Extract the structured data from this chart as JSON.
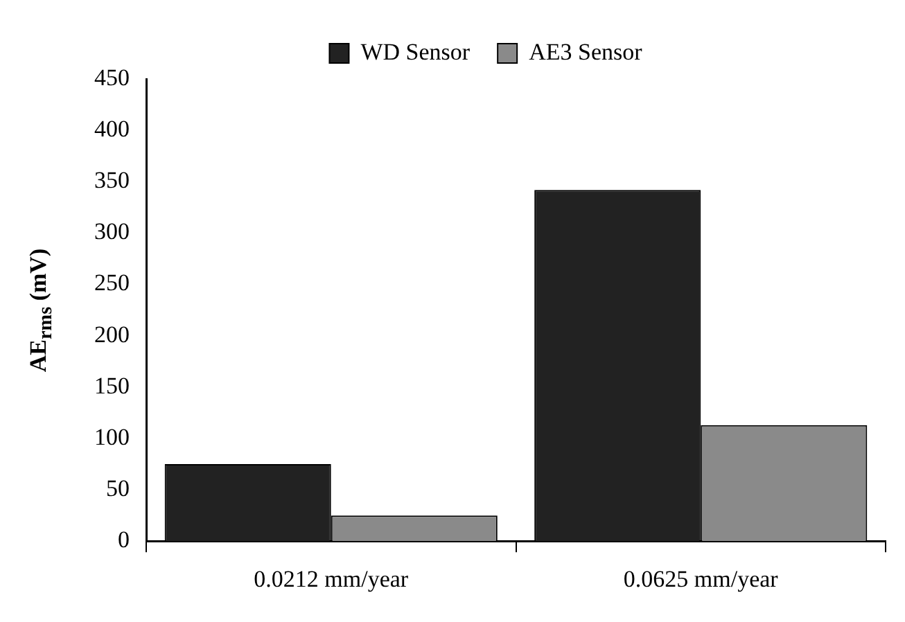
{
  "chart_data": {
    "type": "bar",
    "ylabel": "AE$_{rms}$ (mV)",
    "categories": [
      "0.0212 mm/year",
      "0.0625 mm/year"
    ],
    "series": [
      {
        "name": "WD Sensor",
        "color": "#222222",
        "values": [
          75,
          342
        ]
      },
      {
        "name": "AE3 Sensor",
        "color": "#8a8a8a",
        "values": [
          25,
          113
        ]
      }
    ],
    "ylim": [
      0,
      450
    ],
    "yticks": [
      0,
      50,
      100,
      150,
      200,
      250,
      300,
      350,
      400,
      450
    ],
    "grid": false,
    "legend": "top"
  }
}
